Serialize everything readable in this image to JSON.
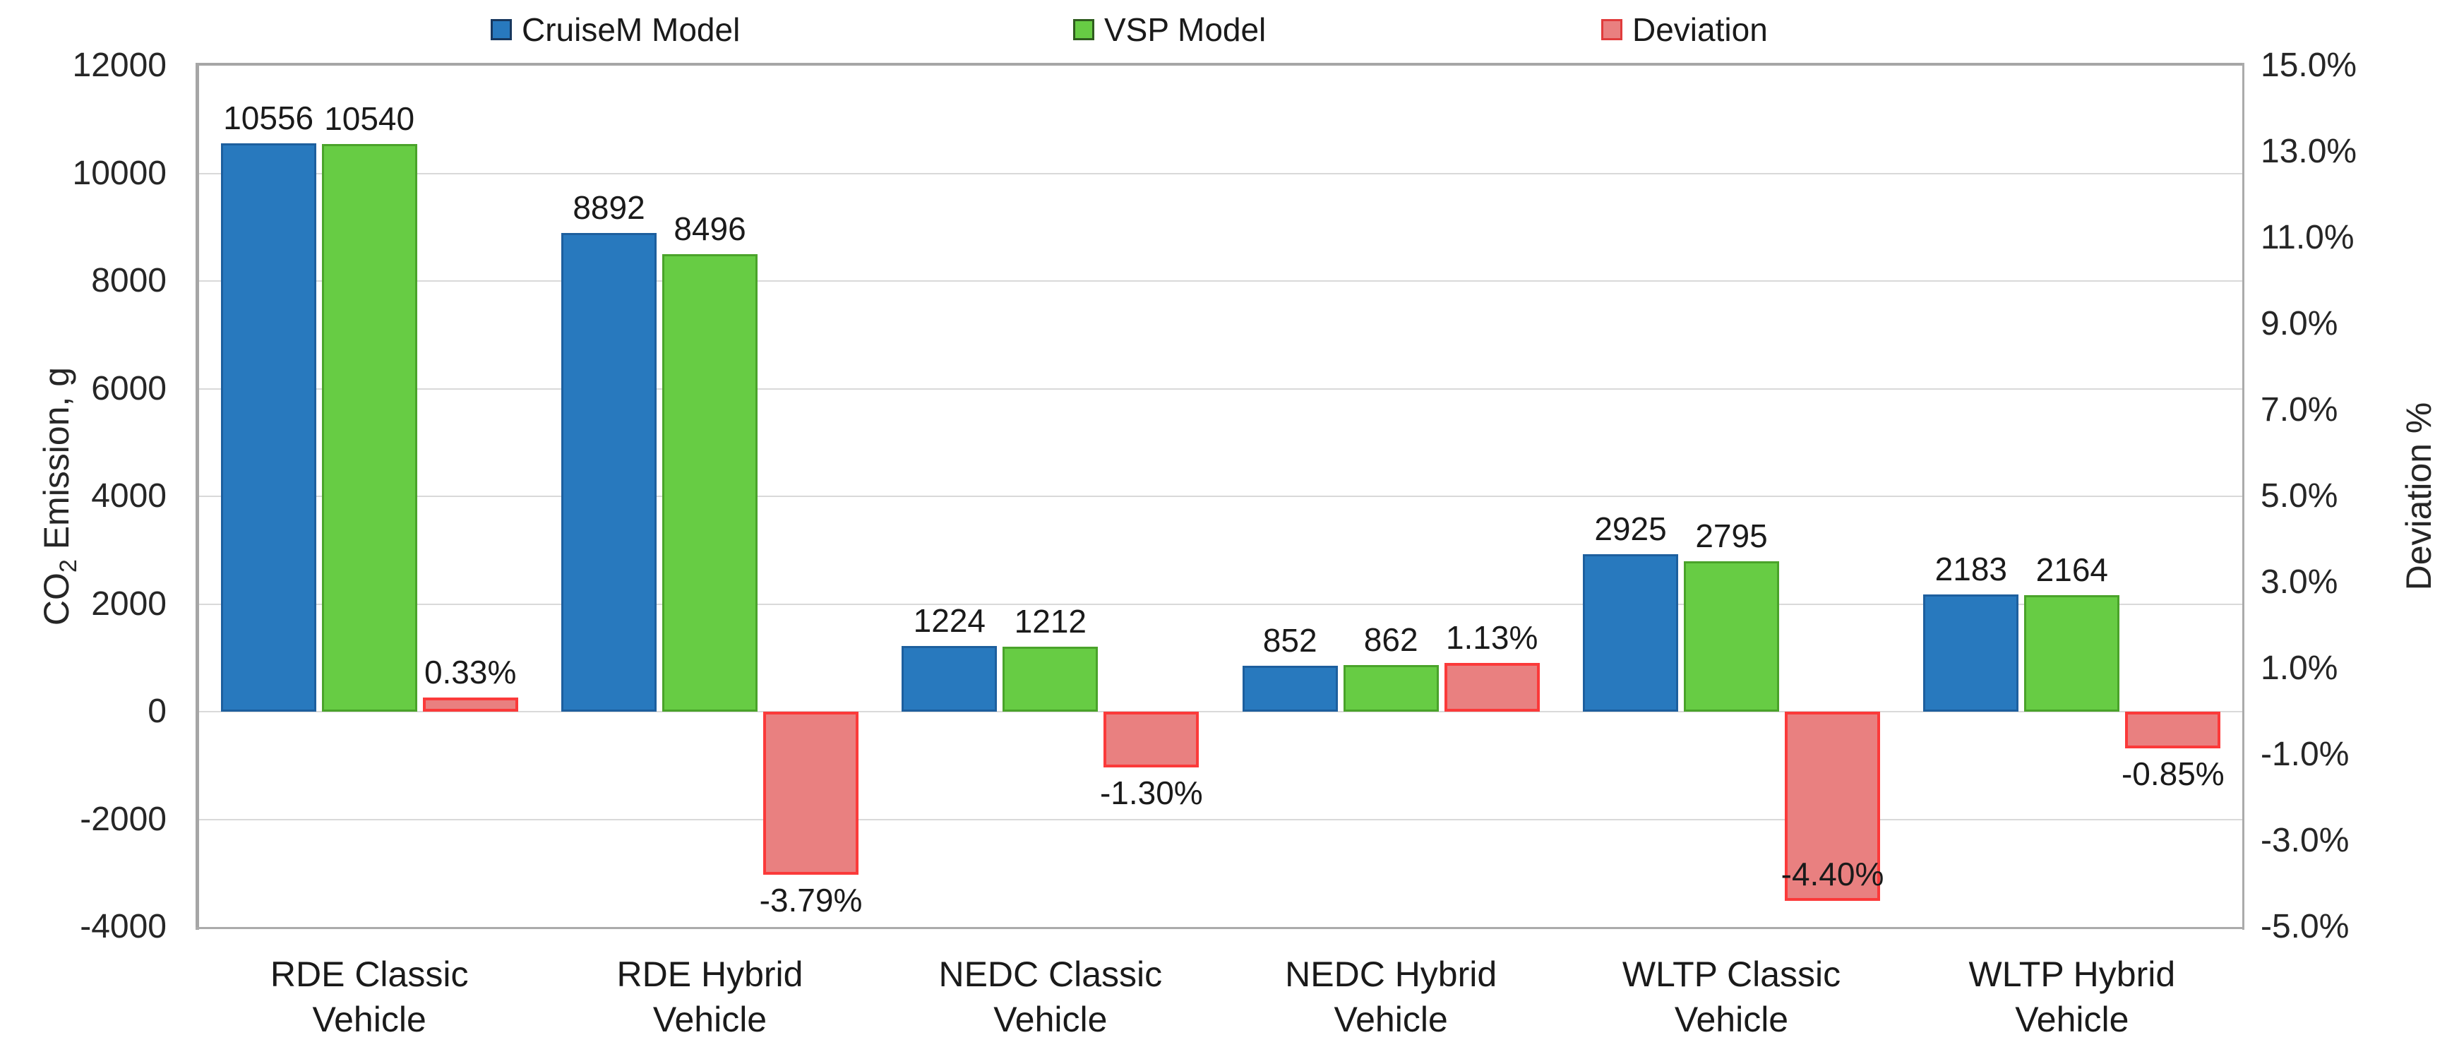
{
  "legend": {
    "items": [
      {
        "label": "CruiseM Model",
        "color": "#2879BE",
        "border": "#17375E"
      },
      {
        "label": "VSP Model",
        "color": "#67CC44",
        "border": "#2F5C1F"
      },
      {
        "label": "Deviation",
        "color": "#E98080",
        "border": "#E03C3C"
      }
    ]
  },
  "left_axis": {
    "title_pre": "CO",
    "title_sub": "2",
    "title_post": " Emission, g",
    "ticks": [
      "12000",
      "10000",
      "8000",
      "6000",
      "4000",
      "2000",
      "0",
      "-2000",
      "-4000"
    ]
  },
  "right_axis": {
    "title": "Deviation %",
    "ticks": [
      "15.0%",
      "13.0%",
      "11.0%",
      "9.0%",
      "7.0%",
      "5.0%",
      "3.0%",
      "1.0%",
      "-1.0%",
      "-3.0%",
      "-5.0%"
    ]
  },
  "chart_data": {
    "type": "bar",
    "categories": [
      [
        "RDE Classic",
        "Vehicle"
      ],
      [
        "RDE Hybrid",
        "Vehicle"
      ],
      [
        "NEDC Classic",
        "Vehicle"
      ],
      [
        "NEDC Hybrid",
        "Vehicle"
      ],
      [
        "WLTP Classic",
        "Vehicle"
      ],
      [
        "WLTP Hybrid",
        "Vehicle"
      ]
    ],
    "series": [
      {
        "name": "CruiseM Model",
        "axis": "left",
        "values": [
          10556,
          8892,
          1224,
          852,
          2925,
          2183
        ],
        "labels": [
          "10556",
          "8892",
          "1224",
          "852",
          "2925",
          "2183"
        ],
        "color": "#2879BE",
        "border_color": "#1D5F9E"
      },
      {
        "name": "VSP Model",
        "axis": "left",
        "values": [
          10540,
          8496,
          1212,
          862,
          2795,
          2164
        ],
        "labels": [
          "10540",
          "8496",
          "1212",
          "862",
          "2795",
          "2164"
        ],
        "color": "#67CC44",
        "border_color": "#4AA32A"
      },
      {
        "name": "Deviation",
        "axis": "right",
        "values": [
          0.33,
          -3.79,
          -1.3,
          1.13,
          -4.4,
          -0.85
        ],
        "labels": [
          "0.33%",
          "-3.79%",
          "-1.30%",
          "1.13%",
          "-4.40%",
          "-0.85%"
        ],
        "color": "#E98080",
        "border_color": "#FB3A3A"
      }
    ],
    "left_ylabel": "CO2 Emission, g",
    "right_ylabel": "Deviation %",
    "left_ylim": [
      -4000,
      12000
    ],
    "right_ylim": [
      -5,
      15
    ],
    "grid": true,
    "legend_position": "top"
  },
  "colors": {
    "gridline": "#D9D9D9",
    "plot_border": "#A6A6A6",
    "text": "#1A1A1A"
  }
}
